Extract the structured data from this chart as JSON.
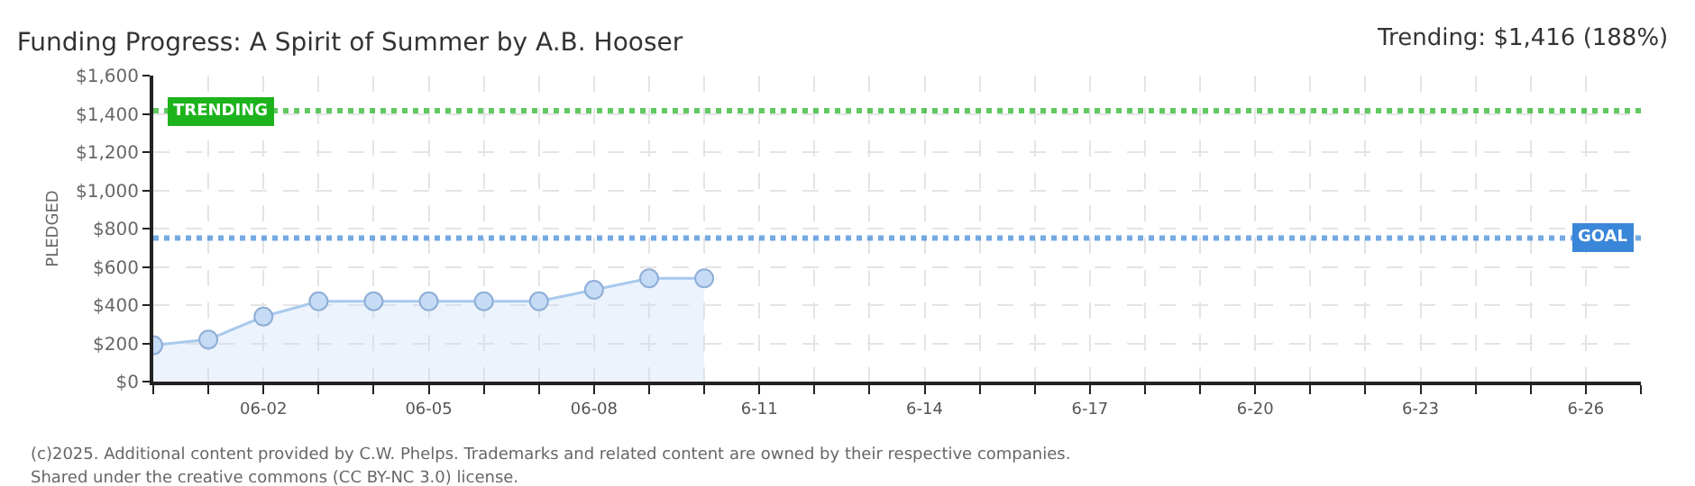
{
  "chart_data": {
    "type": "area",
    "title": "Funding Progress: A Spirit of Summer by A.B. Hooser",
    "subtitle": "Trending: $1,416 (188%)",
    "ylabel": "PLEDGED",
    "x": [
      "--05-31",
      "--06-01",
      "--06-02",
      "--06-03",
      "--06-04",
      "--06-05",
      "--06-06",
      "--06-07",
      "--06-08",
      "--06-09",
      "--06-10"
    ],
    "series": [
      {
        "color": "#a9c9ee",
        "values": [
          190,
          220,
          340,
          420,
          420,
          420,
          420,
          420,
          480,
          540,
          540
        ]
      }
    ],
    "xlim": [
      "--05-31",
      "--06-27"
    ],
    "xticks": [
      {
        "value": "--05-31",
        "label": null
      },
      {
        "value": "--06-01",
        "label": null
      },
      {
        "value": "--06-02",
        "label": "06-02"
      },
      {
        "value": "--06-03",
        "label": null
      },
      {
        "value": "--06-04",
        "label": null
      },
      {
        "value": "--06-05",
        "label": "06-05"
      },
      {
        "value": "--06-06",
        "label": null
      },
      {
        "value": "--06-07",
        "label": null
      },
      {
        "value": "--06-08",
        "label": "06-08"
      },
      {
        "value": "--06-09",
        "label": null
      },
      {
        "value": "--06-10",
        "label": null
      },
      {
        "value": "--06-11",
        "label": "6-11"
      },
      {
        "value": "--06-12",
        "label": null
      },
      {
        "value": "--06-13",
        "label": null
      },
      {
        "value": "--06-14",
        "label": "6-14"
      },
      {
        "value": "--06-15",
        "label": null
      },
      {
        "value": "--06-16",
        "label": null
      },
      {
        "value": "--06-17",
        "label": "6-17"
      },
      {
        "value": "--06-18",
        "label": null
      },
      {
        "value": "--06-19",
        "label": null
      },
      {
        "value": "--06-20",
        "label": "6-20"
      },
      {
        "value": "--06-21",
        "label": null
      },
      {
        "value": "--06-22",
        "label": null
      },
      {
        "value": "--06-23",
        "label": "6-23"
      },
      {
        "value": "--06-24",
        "label": null
      },
      {
        "value": "--06-25",
        "label": null
      },
      {
        "value": "--06-26",
        "label": "6-26"
      },
      {
        "value": "--06-27",
        "label": null
      }
    ],
    "ylim": [
      0,
      1600
    ],
    "yticks": [
      {
        "value": 0,
        "label": "$0"
      },
      {
        "value": 200,
        "label": "$200"
      },
      {
        "value": 400,
        "label": "$400"
      },
      {
        "value": 600,
        "label": "$600"
      },
      {
        "value": 800,
        "label": "$800"
      },
      {
        "value": 1000,
        "label": "$1,000"
      },
      {
        "value": 1200,
        "label": "$1,200"
      },
      {
        "value": 1400,
        "label": "$1,400"
      },
      {
        "value": 1600,
        "label": "$1,600"
      }
    ],
    "ref_lines": [
      {
        "axis": "y",
        "value": 1416,
        "label": "TRENDING",
        "color": "#1db31d",
        "line_style": "dotted"
      },
      {
        "axis": "y",
        "value": 750,
        "label": "GOAL",
        "color": "#3a86d8",
        "line_style": "dotted"
      }
    ],
    "grid": true,
    "marker": "circle",
    "line_style": "solid",
    "annotations": [
      "(c)2025. Additional content provided by C.W. Phelps. Trademarks and related content are owned by their respective companies.",
      "Shared under the creative commons (CC BY-NC 3.0) license."
    ]
  }
}
